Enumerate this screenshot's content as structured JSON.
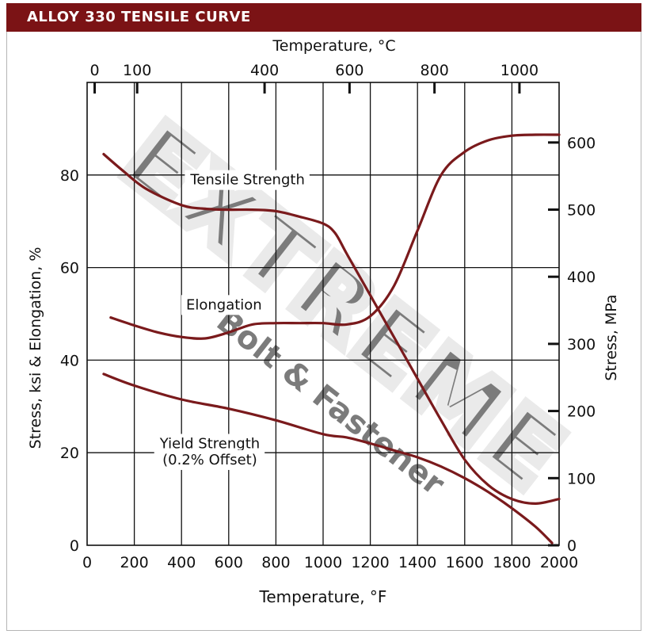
{
  "header": {
    "title": "ALLOY 330 TENSILE CURVE"
  },
  "chart_data": {
    "type": "line",
    "title": "ALLOY 330 TENSILE CURVE",
    "xlabel": "Temperature, °F",
    "xlabel_top": "Temperature, °C",
    "ylabel": "Stress, ksi & Elongation, %",
    "ylabel_right": "Stress, MPa",
    "xlim": [
      0,
      2000
    ],
    "ylim": [
      0,
      100
    ],
    "x_ticks": [
      0,
      200,
      400,
      600,
      800,
      1000,
      1200,
      1400,
      1600,
      1800,
      2000
    ],
    "x_tick_labels": [
      "0",
      "200",
      "400",
      "600",
      "800",
      "1000",
      "1200",
      "1400",
      "1600",
      "1800",
      "2000"
    ],
    "y_ticks": [
      0,
      20,
      40,
      60,
      80
    ],
    "y_tick_labels": [
      "0",
      "20",
      "40",
      "60",
      "80"
    ],
    "top_ticks_c": [
      0,
      100,
      400,
      600,
      800,
      1000
    ],
    "top_tick_labels": [
      "0",
      "100",
      "400",
      "600",
      "800",
      "1000"
    ],
    "right_ticks_mpa": [
      0,
      100,
      200,
      300,
      400,
      500,
      600
    ],
    "right_tick_labels": [
      "0",
      "100",
      "200",
      "300",
      "400",
      "500",
      "600"
    ],
    "grid": true,
    "line_color": "#7a1a1c",
    "watermark": {
      "logo_text": "EXTREME",
      "sub_text": "Bolt & Fastener",
      "color": "#d9d9d9"
    },
    "series": [
      {
        "label": "Tensile Strength",
        "x": [
          70,
          150,
          250,
          400,
          500,
          600,
          700,
          800,
          900,
          1000,
          1050,
          1100,
          1200,
          1300,
          1400,
          1500,
          1600,
          1700,
          1800,
          1900,
          2000
        ],
        "y": [
          84.5,
          81,
          77,
          73.5,
          72.7,
          72.5,
          72.5,
          72.2,
          71,
          69.5,
          67.5,
          63,
          54,
          45,
          36,
          27,
          18.5,
          13,
          10,
          9,
          10
        ]
      },
      {
        "label": "Elongation",
        "x": [
          100,
          200,
          300,
          400,
          500,
          600,
          700,
          800,
          900,
          1000,
          1100,
          1200,
          1300,
          1400,
          1500,
          1600,
          1700,
          1800,
          1900,
          2000
        ],
        "y": [
          49.2,
          47.5,
          46,
          45,
          44.7,
          46,
          47.7,
          48,
          48,
          48,
          47.7,
          49.5,
          56,
          68,
          80,
          85,
          87.5,
          88.5,
          88.7,
          88.7
        ]
      },
      {
        "label": "Yield Strength\n(0.2% Offset)",
        "x": [
          70,
          200,
          400,
          600,
          800,
          1000,
          1100,
          1200,
          1300,
          1400,
          1500,
          1600,
          1700,
          1800,
          1900,
          1970
        ],
        "y": [
          37,
          34.5,
          31.5,
          29.5,
          27,
          24,
          23.3,
          22,
          20.5,
          19,
          17,
          14.5,
          11.5,
          8,
          4,
          0.5
        ]
      }
    ],
    "annotations": [
      {
        "text": "Tensile Strength",
        "x": 680,
        "y": 79
      },
      {
        "text": "Elongation",
        "x": 580,
        "y": 52
      },
      {
        "text": "Yield Strength",
        "x": 520,
        "y": 22
      },
      {
        "text": "(0.2% Offset)",
        "x": 520,
        "y": 18.5
      }
    ]
  }
}
